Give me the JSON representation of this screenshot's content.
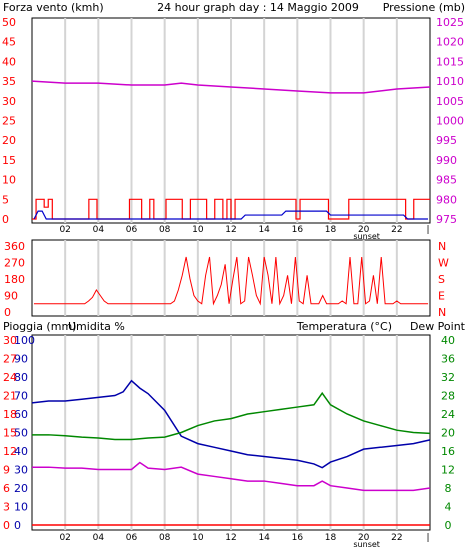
{
  "header": {
    "left_label": "Forza vento (kmh)",
    "title": "24 hour graph day : 14 Maggio 2009",
    "right_label": "Pressione (mb)"
  },
  "colors": {
    "frame": "#000000",
    "grid": "#d4d4d4",
    "wind": "#ff0000",
    "wind_avg": "#0000cc",
    "pressure": "#cc00cc",
    "direction": "#ff0000",
    "humidity": "#0000aa",
    "temperature": "#008800",
    "dewpoint": "#cc00cc",
    "rain": "#ff0000"
  },
  "bottom": {
    "left_label_rain": "Pioggia (mm)",
    "left_label_humidity": "Umidita %",
    "right_label_temp": "Temperatura (°C)",
    "right_label_dew": "Dew Point"
  },
  "chart_data": [
    {
      "type": "bar",
      "name_axis_left": "Forza vento (kmh)",
      "name_axis_right": "Pressione (mb)",
      "x_ticks": [
        "02",
        "04",
        "06",
        "08",
        "10",
        "12",
        "14",
        "16",
        "18",
        "20",
        "22"
      ],
      "x_extra_label": "sunset",
      "ylim_left": [
        0,
        50
      ],
      "yticks_left": [
        0,
        5,
        10,
        15,
        20,
        25,
        30,
        35,
        40,
        45,
        50
      ],
      "ylim_right": [
        975,
        1025
      ],
      "yticks_right": [
        975,
        980,
        985,
        990,
        995,
        1000,
        1005,
        1010,
        1015,
        1020,
        1025
      ],
      "series": [
        {
          "key": "wind_gust",
          "values": [
            0,
            5,
            5,
            3,
            5,
            0,
            0,
            0,
            0,
            0,
            0,
            0,
            0,
            0,
            5,
            5,
            0,
            0,
            0,
            0,
            0,
            0,
            0,
            0,
            5,
            5,
            5,
            0,
            0,
            5,
            0,
            0,
            0,
            5,
            5,
            5,
            5,
            0,
            0,
            5,
            5,
            5,
            5,
            0,
            0,
            5,
            5,
            0,
            5,
            0,
            5,
            5,
            5,
            5,
            5,
            5,
            5,
            5,
            5,
            5,
            5,
            5,
            5,
            5,
            5,
            0,
            5,
            5,
            5,
            5,
            5,
            5,
            5,
            0,
            0,
            0,
            0,
            0,
            5,
            5,
            5,
            5,
            5,
            5,
            5,
            5,
            5,
            5,
            5,
            5,
            5,
            5,
            0,
            0,
            5,
            5,
            5,
            5
          ]
        },
        {
          "key": "wind_avg",
          "values": [
            0,
            2,
            2,
            0,
            0,
            0,
            0,
            0,
            0,
            0,
            0,
            0,
            0,
            0,
            0,
            0,
            0,
            0,
            0,
            0,
            0,
            0,
            0,
            0,
            0,
            0,
            0,
            0,
            0,
            0,
            0,
            0,
            0,
            0,
            0,
            0,
            0,
            0,
            0,
            0,
            0,
            0,
            0,
            0,
            0,
            0,
            0,
            0,
            0,
            0,
            0,
            0,
            1,
            1,
            1,
            1,
            1,
            1,
            1,
            1,
            1,
            1,
            2,
            2,
            2,
            2,
            2,
            2,
            2,
            2,
            2,
            2,
            2,
            1,
            1,
            1,
            1,
            1,
            1,
            1,
            1,
            1,
            1,
            1,
            1,
            1,
            1,
            1,
            1,
            1,
            1,
            1,
            0,
            0,
            0,
            0,
            0,
            0
          ]
        },
        {
          "key": "pressure",
          "x": [
            0,
            2,
            4,
            6,
            8,
            9,
            10,
            12,
            14,
            16,
            18,
            20,
            22,
            24
          ],
          "values": [
            1010,
            1009.5,
            1009.5,
            1009,
            1009,
            1009.5,
            1009,
            1008.5,
            1008,
            1007.5,
            1007,
            1007,
            1008,
            1008.5
          ]
        }
      ]
    },
    {
      "type": "line",
      "name_axis_right": [
        "N",
        "W",
        "S",
        "E",
        "N"
      ],
      "yticks_left": [
        0,
        90,
        180,
        270,
        360
      ],
      "ylim": [
        0,
        360
      ],
      "series": [
        {
          "key": "direction",
          "values": [
            45,
            45,
            45,
            45,
            45,
            45,
            45,
            45,
            45,
            45,
            45,
            45,
            45,
            45,
            60,
            80,
            120,
            90,
            60,
            45,
            45,
            45,
            45,
            45,
            45,
            45,
            45,
            45,
            45,
            45,
            45,
            45,
            45,
            45,
            45,
            45,
            60,
            120,
            200,
            300,
            180,
            90,
            60,
            45,
            200,
            300,
            45,
            90,
            150,
            260,
            45,
            180,
            300,
            45,
            60,
            300,
            200,
            90,
            45,
            300,
            200,
            45,
            300,
            45,
            90,
            200,
            45,
            300,
            60,
            45,
            200,
            45,
            45,
            45,
            90,
            45,
            45,
            45,
            45,
            60,
            45,
            300,
            45,
            45,
            300,
            45,
            60,
            200,
            45,
            300,
            45,
            45,
            45,
            60,
            45,
            45,
            45,
            45,
            45,
            45,
            45,
            45
          ]
        }
      ]
    },
    {
      "type": "line",
      "ylim_left_rain": [
        0,
        30
      ],
      "yticks_left_rain": [
        0,
        3,
        6,
        9,
        12,
        15,
        18,
        21,
        24,
        27,
        30
      ],
      "ylim_left_hum": [
        0,
        100
      ],
      "yticks_left_hum": [
        0,
        10,
        20,
        30,
        40,
        50,
        60,
        70,
        80,
        90,
        100
      ],
      "ylim_right": [
        0,
        40
      ],
      "yticks_right": [
        0,
        4,
        8,
        12,
        16,
        20,
        24,
        28,
        32,
        36,
        40
      ],
      "x_ticks": [
        "02",
        "04",
        "06",
        "08",
        "10",
        "12",
        "14",
        "16",
        "18",
        "20",
        "22"
      ],
      "x_extra_label": "sunset",
      "series": [
        {
          "key": "humidity",
          "x": [
            0,
            1,
            2,
            3,
            4,
            5,
            5.5,
            6,
            6.5,
            7,
            8,
            9,
            10,
            11,
            12,
            13,
            14,
            15,
            16,
            17,
            17.5,
            18,
            19,
            20,
            21,
            22,
            23,
            24
          ],
          "values": [
            66,
            67,
            67,
            68,
            69,
            70,
            72,
            78,
            74,
            71,
            62,
            48,
            44,
            42,
            40,
            38,
            37,
            36,
            35,
            33,
            31,
            34,
            37,
            41,
            42,
            43,
            44,
            46
          ]
        },
        {
          "key": "temperature",
          "x": [
            0,
            1,
            2,
            3,
            4,
            5,
            6,
            7,
            8,
            9,
            10,
            11,
            12,
            13,
            14,
            15,
            16,
            17,
            17.5,
            18,
            19,
            20,
            21,
            22,
            23,
            24
          ],
          "values": [
            19.5,
            19.5,
            19.3,
            19,
            18.8,
            18.5,
            18.5,
            18.8,
            19,
            20,
            21.5,
            22.5,
            23,
            24,
            24.5,
            25,
            25.5,
            26,
            28.5,
            26,
            24,
            22.5,
            21.5,
            20.5,
            20,
            19.8
          ]
        },
        {
          "key": "dewpoint",
          "x": [
            0,
            1,
            2,
            3,
            4,
            5,
            6,
            6.5,
            7,
            8,
            9,
            10,
            11,
            12,
            13,
            14,
            15,
            16,
            17,
            17.5,
            18,
            19,
            20,
            21,
            22,
            23,
            24
          ],
          "values": [
            12.5,
            12.5,
            12.3,
            12.3,
            12,
            12,
            12,
            13.5,
            12.3,
            12,
            12.5,
            11,
            10.5,
            10,
            9.5,
            9.5,
            9,
            8.5,
            8.5,
            9.5,
            8.5,
            8,
            7.5,
            7.5,
            7.5,
            7.5,
            8
          ]
        },
        {
          "key": "rain",
          "x": [
            0,
            24
          ],
          "values": [
            0,
            0
          ]
        }
      ]
    }
  ]
}
